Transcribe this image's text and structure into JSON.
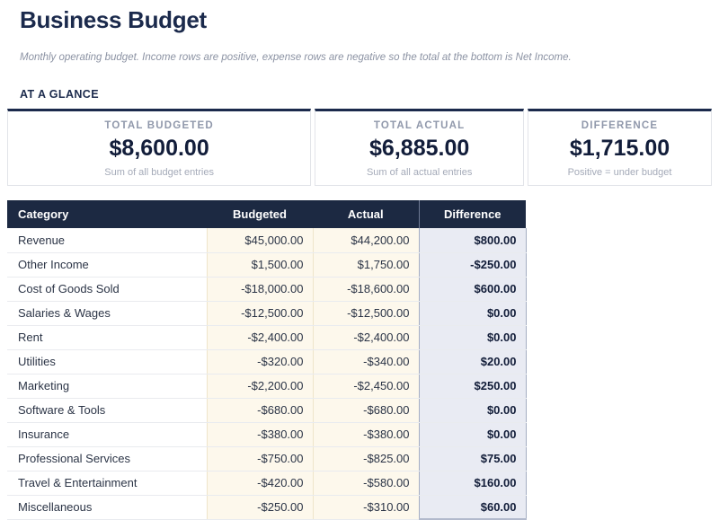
{
  "page": {
    "title": "Business Budget",
    "subtitle": "Monthly operating budget. Income rows are positive, expense rows are negative so the total at the bottom is Net Income.",
    "section_heading": "AT A GLANCE"
  },
  "colors": {
    "header_navy": "#1c2942",
    "title_navy": "#1b2a4c",
    "budget_column_bg": "#fdf8ec",
    "difference_column_bg": "#e9ebf3",
    "difference_column_border": "#a4adc2"
  },
  "cards": [
    {
      "label": "TOTAL BUDGETED",
      "value": "$8,600.00",
      "note": "Sum of all budget entries"
    },
    {
      "label": "TOTAL ACTUAL",
      "value": "$6,885.00",
      "note": "Sum of all actual entries"
    },
    {
      "label": "DIFFERENCE",
      "value": "$1,715.00",
      "note": "Positive = under budget"
    }
  ],
  "table": {
    "columns": [
      "Category",
      "Budgeted",
      "Actual",
      "Difference"
    ],
    "rows": [
      {
        "category": "Revenue",
        "budgeted": "$45,000.00",
        "actual": "$44,200.00",
        "difference": "$800.00"
      },
      {
        "category": "Other Income",
        "budgeted": "$1,500.00",
        "actual": "$1,750.00",
        "difference": "-$250.00"
      },
      {
        "category": "Cost of Goods Sold",
        "budgeted": "-$18,000.00",
        "actual": "-$18,600.00",
        "difference": "$600.00"
      },
      {
        "category": "Salaries & Wages",
        "budgeted": "-$12,500.00",
        "actual": "-$12,500.00",
        "difference": "$0.00"
      },
      {
        "category": "Rent",
        "budgeted": "-$2,400.00",
        "actual": "-$2,400.00",
        "difference": "$0.00"
      },
      {
        "category": "Utilities",
        "budgeted": "-$320.00",
        "actual": "-$340.00",
        "difference": "$20.00"
      },
      {
        "category": "Marketing",
        "budgeted": "-$2,200.00",
        "actual": "-$2,450.00",
        "difference": "$250.00"
      },
      {
        "category": "Software & Tools",
        "budgeted": "-$680.00",
        "actual": "-$680.00",
        "difference": "$0.00"
      },
      {
        "category": "Insurance",
        "budgeted": "-$380.00",
        "actual": "-$380.00",
        "difference": "$0.00"
      },
      {
        "category": "Professional Services",
        "budgeted": "-$750.00",
        "actual": "-$825.00",
        "difference": "$75.00"
      },
      {
        "category": "Travel & Entertainment",
        "budgeted": "-$420.00",
        "actual": "-$580.00",
        "difference": "$160.00"
      },
      {
        "category": "Miscellaneous",
        "budgeted": "-$250.00",
        "actual": "-$310.00",
        "difference": "$60.00"
      }
    ]
  },
  "chart_data": {
    "type": "table",
    "title": "Business Budget",
    "columns": [
      "Category",
      "Budgeted",
      "Actual",
      "Difference"
    ],
    "rows": [
      [
        "Revenue",
        45000.0,
        44200.0,
        800.0
      ],
      [
        "Other Income",
        1500.0,
        1750.0,
        -250.0
      ],
      [
        "Cost of Goods Sold",
        -18000.0,
        -18600.0,
        600.0
      ],
      [
        "Salaries & Wages",
        -12500.0,
        -12500.0,
        0.0
      ],
      [
        "Rent",
        -2400.0,
        -2400.0,
        0.0
      ],
      [
        "Utilities",
        -320.0,
        -340.0,
        20.0
      ],
      [
        "Marketing",
        -2200.0,
        -2450.0,
        250.0
      ],
      [
        "Software & Tools",
        -680.0,
        -680.0,
        0.0
      ],
      [
        "Insurance",
        -380.0,
        -380.0,
        0.0
      ],
      [
        "Professional Services",
        -750.0,
        -825.0,
        75.0
      ],
      [
        "Travel & Entertainment",
        -420.0,
        -580.0,
        160.0
      ],
      [
        "Miscellaneous",
        -250.0,
        -310.0,
        60.0
      ]
    ],
    "summary": {
      "total_budgeted": 8600.0,
      "total_actual": 6885.0,
      "difference": 1715.0
    }
  }
}
